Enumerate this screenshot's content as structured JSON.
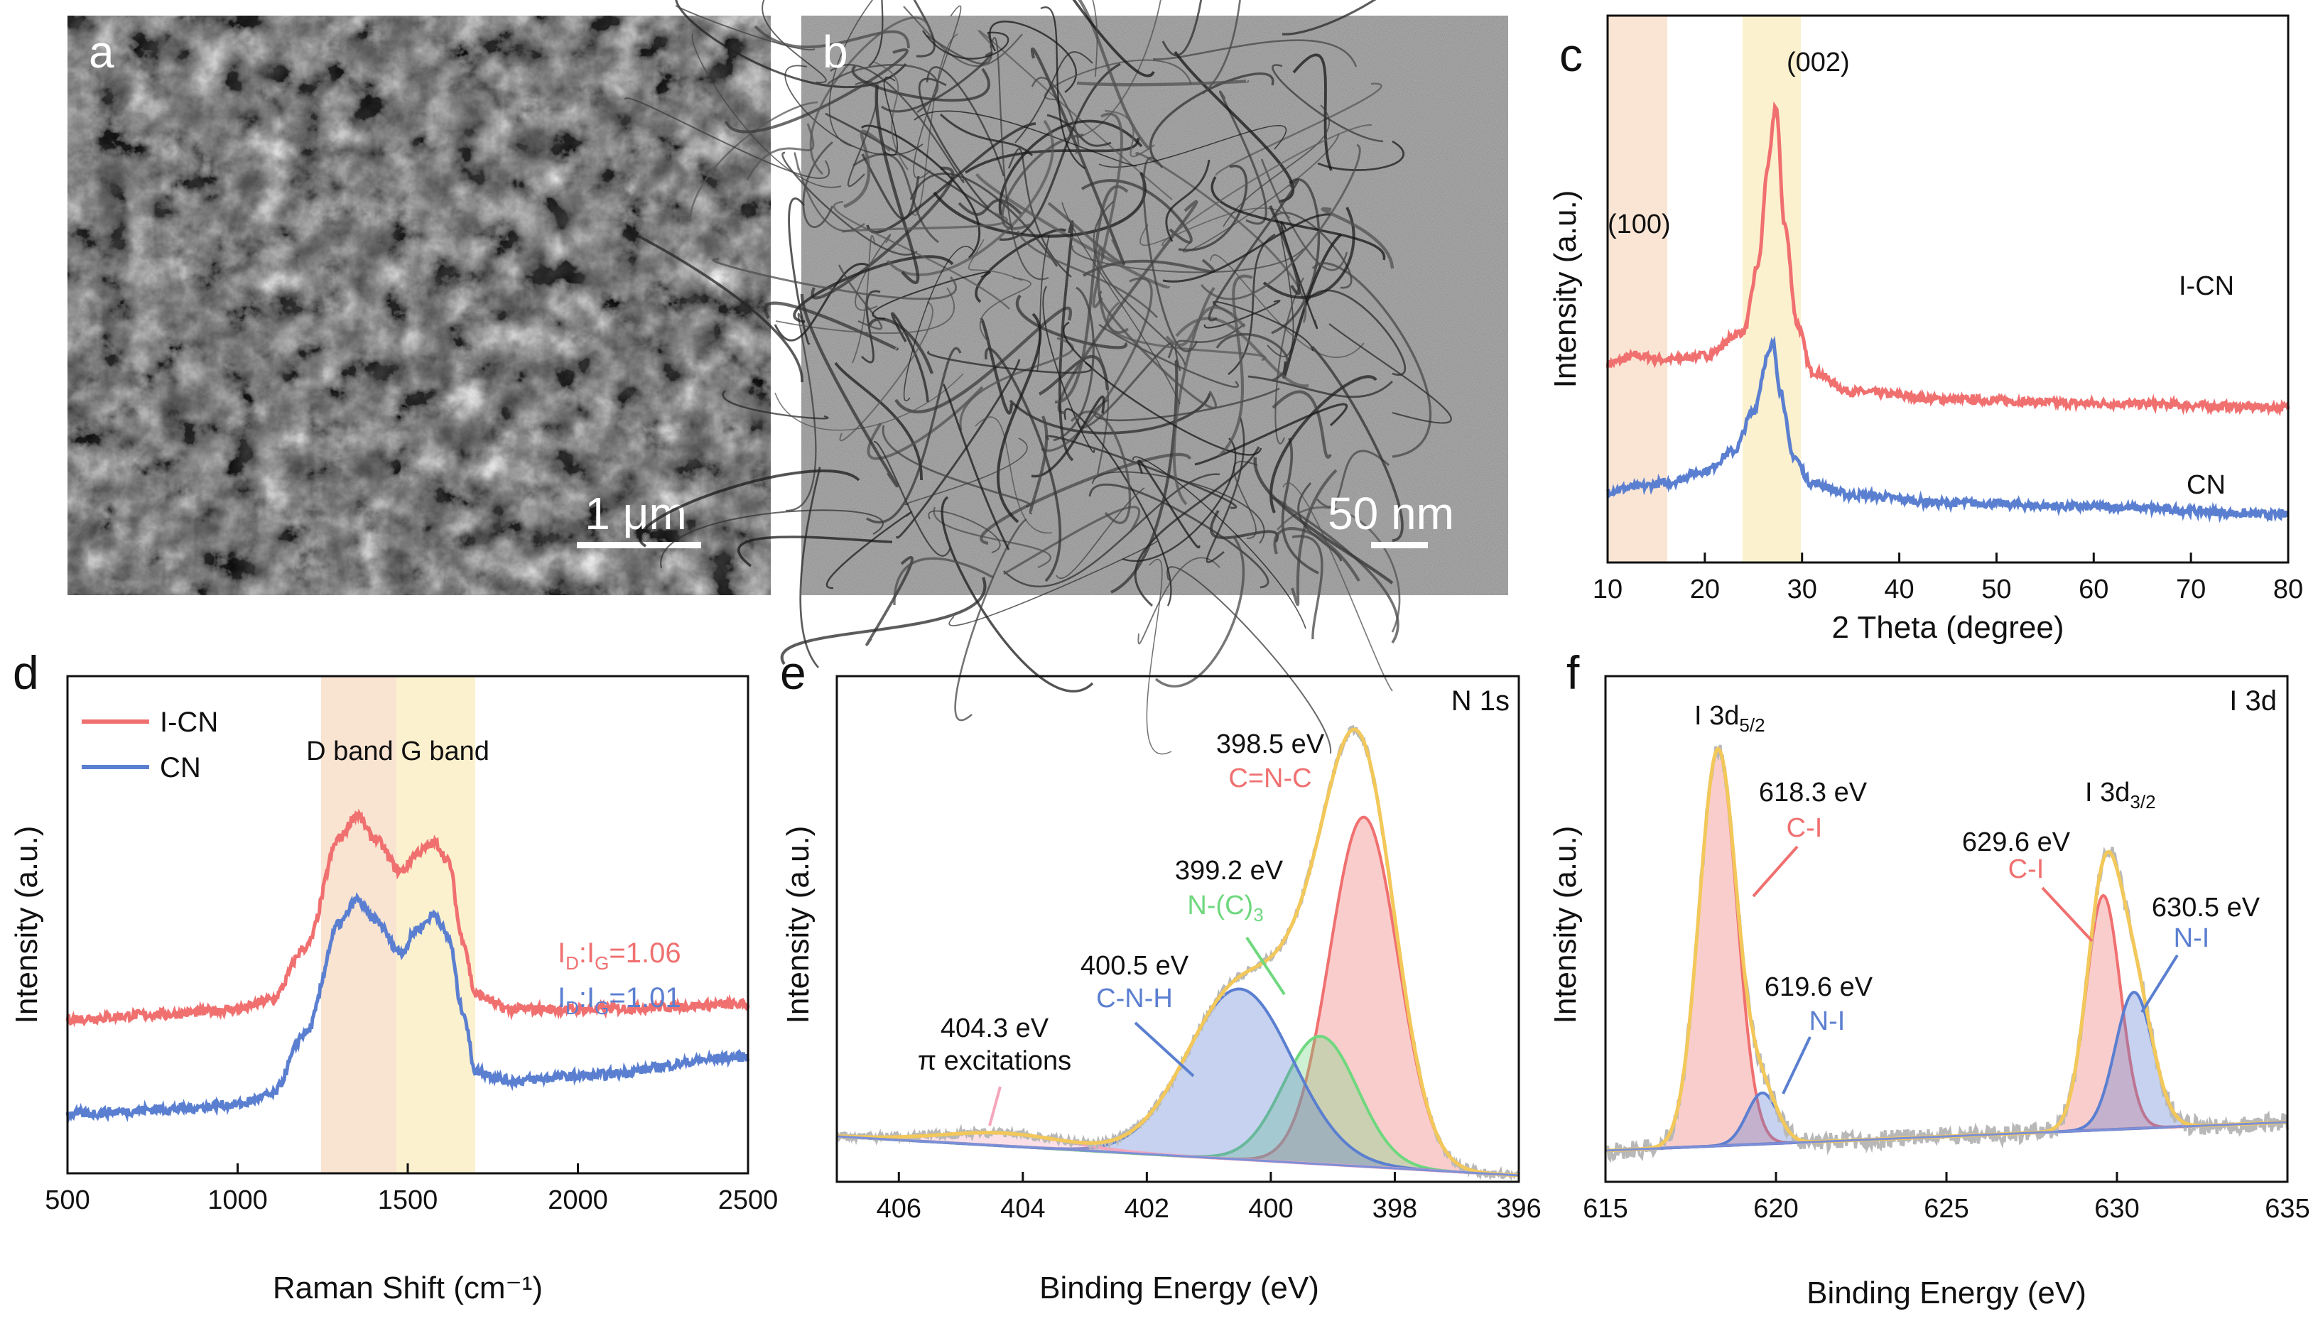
{
  "colors": {
    "icn": "#f07070",
    "cn": "#5b7fd0",
    "peach": "#f8dcc6",
    "yellow": "#fbeec5",
    "fit": "#f3c85a",
    "raw": "#b8b8b8",
    "green": "#6fd87f",
    "pink": "#f4a6bc"
  },
  "panels": {
    "a": {
      "letter": "a",
      "scale_label": "1 μm"
    },
    "b": {
      "letter": "b",
      "scale_label": "50 nm"
    },
    "c": {
      "letter": "c",
      "chart_data": {
        "type": "line",
        "xlabel": "2 Theta (degree)",
        "ylabel": "Intensity (a.u.)",
        "xlim": [
          10,
          80
        ],
        "xticks": [
          "10",
          "20",
          "30",
          "40",
          "50",
          "60",
          "70",
          "80"
        ],
        "series_labels": [
          "I-CN",
          "CN"
        ],
        "peak_labels": [
          "(100)",
          "(002)"
        ],
        "series": [
          {
            "name": "I-CN",
            "x": [
              10,
              13,
              16,
              20,
              24,
              25.5,
              26.5,
              27.3,
              28.2,
              29.5,
              31,
              35,
              45,
              60,
              80
            ],
            "values": [
              0.5,
              0.52,
              0.51,
              0.52,
              0.58,
              0.75,
              1.0,
              1.15,
              0.85,
              0.6,
              0.48,
              0.43,
              0.41,
              0.4,
              0.39
            ]
          },
          {
            "name": "CN",
            "x": [
              10,
              13,
              16,
              20,
              23,
              25,
              26.5,
              27,
              27.8,
              29,
              31,
              35,
              45,
              60,
              80
            ],
            "values": [
              0.18,
              0.19,
              0.2,
              0.23,
              0.28,
              0.38,
              0.52,
              0.55,
              0.43,
              0.27,
              0.2,
              0.17,
              0.15,
              0.14,
              0.12
            ]
          }
        ],
        "shaded_ranges": [
          [
            10,
            16.3
          ],
          [
            24,
            30.3
          ]
        ]
      }
    },
    "d": {
      "letter": "d",
      "chart_data": {
        "type": "line",
        "xlabel": "Raman Shift (cm⁻¹)",
        "ylabel": "Intensity (a.u.)",
        "xlim": [
          500,
          2500
        ],
        "xticks": [
          "500",
          "1000",
          "1500",
          "2000",
          "2500"
        ],
        "legend": [
          "I-CN",
          "CN"
        ],
        "band_label": "D band G band",
        "ratio_labels": [
          {
            "prefix": "I",
            "sub1": "D",
            "mid": ":I",
            "sub2": "G",
            "value": "=1.06"
          },
          {
            "prefix": "I",
            "sub1": "D",
            "mid": ":I",
            "sub2": "G",
            "value": "=1.01"
          }
        ],
        "series": [
          {
            "name": "I-CN",
            "x": [
              500,
              800,
              1000,
              1100,
              1200,
              1300,
              1350,
              1400,
              1480,
              1530,
              1580,
              1620,
              1660,
              1700,
              1800,
              2000,
              2500
            ],
            "values": [
              0.25,
              0.26,
              0.27,
              0.29,
              0.4,
              0.63,
              0.68,
              0.63,
              0.56,
              0.6,
              0.62,
              0.58,
              0.42,
              0.3,
              0.27,
              0.27,
              0.28
            ]
          },
          {
            "name": "CN",
            "x": [
              500,
              800,
              1000,
              1100,
              1200,
              1300,
              1350,
              1400,
              1480,
              1530,
              1580,
              1620,
              1660,
              1700,
              1800,
              2000,
              2500
            ],
            "values": [
              0.05,
              0.06,
              0.07,
              0.09,
              0.22,
              0.45,
              0.5,
              0.46,
              0.39,
              0.44,
              0.47,
              0.42,
              0.27,
              0.14,
              0.12,
              0.13,
              0.17
            ]
          }
        ],
        "shaded_ranges": [
          [
            1250,
            1470
          ],
          [
            1470,
            1700
          ]
        ]
      }
    },
    "e": {
      "letter": "e",
      "title": "N 1s",
      "chart_data": {
        "type": "line",
        "xlabel": "Binding Energy (eV)",
        "ylabel": "Intensity (a.u.)",
        "xlim": [
          407,
          396
        ],
        "xticks": [
          "406",
          "404",
          "402",
          "400",
          "398",
          "396"
        ],
        "peaks": [
          {
            "center": 398.5,
            "height": 0.82,
            "width": 0.55,
            "energy": "398.5 eV",
            "assignment": "C=N-C"
          },
          {
            "center": 399.2,
            "height": 0.3,
            "width": 0.6,
            "energy": "399.2 eV",
            "assignment": "N-(C)",
            "assignment_sub": "3"
          },
          {
            "center": 400.5,
            "height": 0.4,
            "width": 0.85,
            "energy": "400.5 eV",
            "assignment": "C-N-H"
          },
          {
            "center": 404.3,
            "height": 0.03,
            "width": 1.0,
            "energy": "404.3 eV",
            "assignment": "π excitations"
          }
        ]
      }
    },
    "f": {
      "letter": "f",
      "title": "I 3d",
      "chart_data": {
        "type": "line",
        "xlabel": "Binding Energy (eV)",
        "ylabel": "Intensity (a.u.)",
        "xlim": [
          615,
          635
        ],
        "xticks": [
          "615",
          "620",
          "625",
          "630",
          "635"
        ],
        "doublet_labels": [
          {
            "text": "I 3d",
            "sub": "5/2"
          },
          {
            "text": "I 3d",
            "sub": "3/2"
          }
        ],
        "peaks": [
          {
            "center": 618.3,
            "height": 0.93,
            "width": 0.55,
            "energy": "618.3 eV",
            "assignment": "C-I"
          },
          {
            "center": 619.6,
            "height": 0.12,
            "width": 0.45,
            "energy": "619.6 eV",
            "assignment": "N-I"
          },
          {
            "center": 629.6,
            "height": 0.55,
            "width": 0.5,
            "energy": "629.6 eV",
            "assignment": "C-I"
          },
          {
            "center": 630.5,
            "height": 0.32,
            "width": 0.55,
            "energy": "630.5 eV",
            "assignment": "N-I"
          }
        ]
      }
    }
  }
}
